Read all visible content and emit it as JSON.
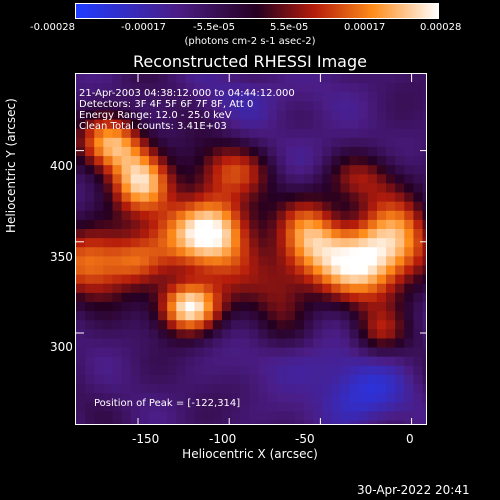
{
  "colorbar": {
    "labels": [
      "-0.00028",
      "-0.00017",
      "-5.5e-05",
      "5.5e-05",
      "0.00017",
      "0.00028"
    ],
    "units": "(photons cm-2 s-1 asec-2)",
    "range": [
      -0.00028,
      0.00028
    ],
    "colors": [
      "#1f3cff",
      "#4b1d86",
      "#250020",
      "#b61d0b",
      "#ff8c1a",
      "#ffffff"
    ]
  },
  "figure": {
    "title": "Reconstructed RHESSI Image",
    "info_lines": [
      "21-Apr-2003 04:38:12.000 to 04:44:12.000",
      "Detectors: 3F 4F 5F 6F 7F 8F, Att 0",
      "Energy Range: 12.0 - 25.0 keV",
      "Clean    Total counts: 3.41E+03"
    ],
    "peak_text": "Position of Peak = [-122,314]",
    "timestamp": "30-Apr-2022 20:41"
  },
  "axes": {
    "x_label": "Heliocentric X (arcsec)",
    "y_label": "Heliocentric Y (arcsec)",
    "x_ticks": [
      "-150",
      "-100",
      "-50",
      "0"
    ],
    "y_ticks": [
      "400",
      "350",
      "300"
    ]
  },
  "chart_data": {
    "type": "heatmap",
    "title": "Reconstructed RHESSI Image",
    "xlabel": "Heliocentric X (arcsec)",
    "ylabel": "Heliocentric Y (arcsec)",
    "xlim": [
      -184,
      9
    ],
    "ylim": [
      249,
      442
    ],
    "x_ticks": [
      -150,
      -100,
      -50,
      0
    ],
    "y_ticks": [
      300,
      350,
      400
    ],
    "colorbar_range": [
      -0.00028,
      0.00028
    ],
    "colorbar_ticks": [
      -0.00028,
      -0.00017,
      -5.5e-05,
      5.5e-05,
      0.00017,
      0.00028
    ],
    "peak_position": [
      -122,
      314
    ]
  }
}
